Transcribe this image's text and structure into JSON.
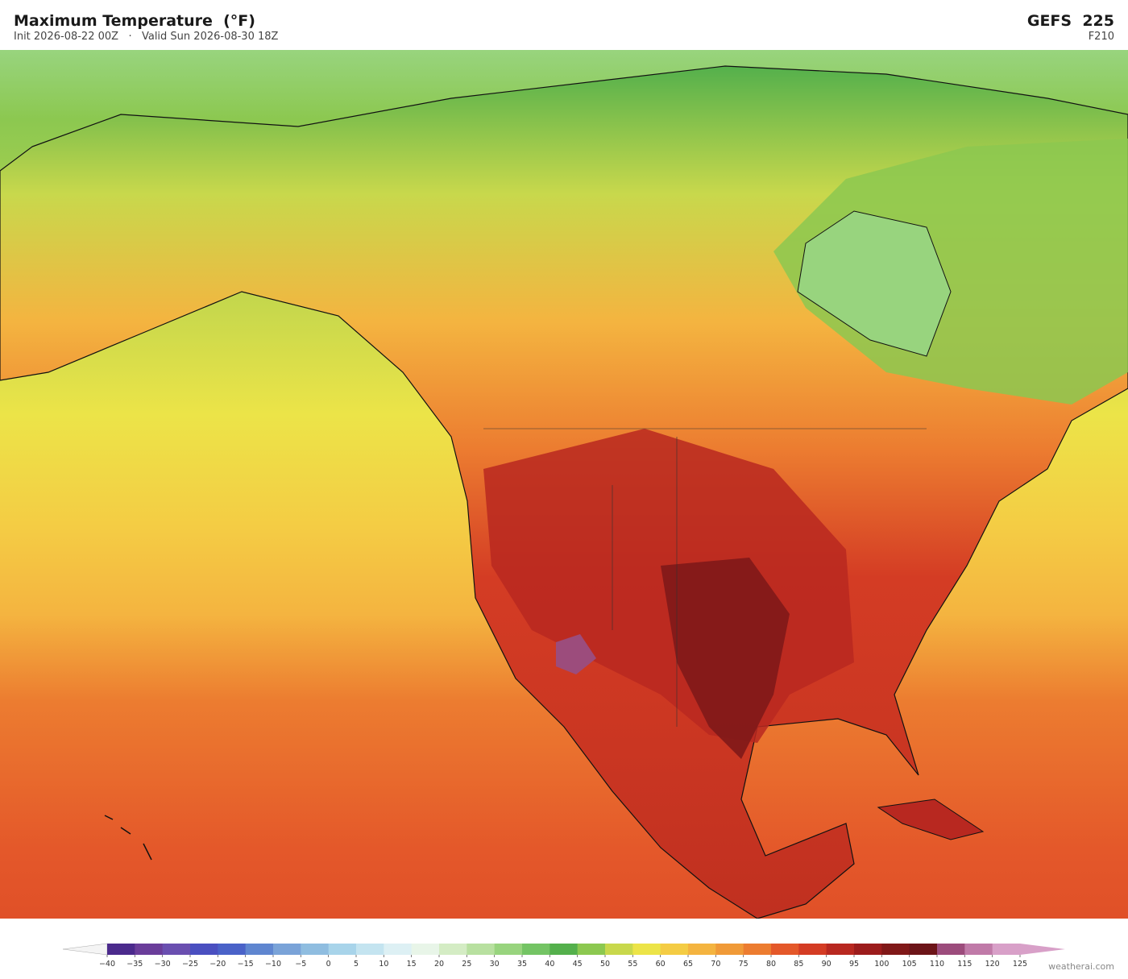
{
  "header": {
    "title": "Maximum Temperature  (°F)",
    "subtitle": "Init 2026-08-22 00Z   ·   Valid Sun 2026-08-30 18Z",
    "model": "GEFS  225",
    "forecast_hour": "F210"
  },
  "colorbar": {
    "ticks": [
      {
        "value": -40,
        "label": "−40"
      },
      {
        "value": -35,
        "label": "−35"
      },
      {
        "value": -30,
        "label": "−30"
      },
      {
        "value": -25,
        "label": "−25"
      },
      {
        "value": -20,
        "label": "−20"
      },
      {
        "value": -15,
        "label": "−15"
      },
      {
        "value": -10,
        "label": "−10"
      },
      {
        "value": -5,
        "label": "−5"
      },
      0,
      5,
      10,
      15,
      20,
      25,
      30,
      35,
      40,
      45,
      50,
      55,
      60,
      65,
      70,
      75,
      80,
      85,
      90,
      95,
      100,
      105,
      110,
      115,
      120,
      125
    ],
    "colors": [
      "#4b2a8c",
      "#6a3d9a",
      "#6a4fb0",
      "#4a4fc0",
      "#4a62c8",
      "#5f86d0",
      "#7aa3d8",
      "#8fbde0",
      "#a8d4ea",
      "#c4e4f0",
      "#ddf0f4",
      "#e8f5e8",
      "#d4ecc4",
      "#b8e0a0",
      "#98d47e",
      "#74c464",
      "#54b04c",
      "#8cc850",
      "#c8d84c",
      "#ece448",
      "#f4cc44",
      "#f4b440",
      "#f09a38",
      "#ec7c30",
      "#e4582a",
      "#d43c24",
      "#b82820",
      "#9c1c1c",
      "#801818",
      "#6c1418",
      "#9c4c7c",
      "#c07aa8",
      "#d8a0c8"
    ],
    "under_color": "#f4f4f4",
    "over_color": "#d8a0c8"
  },
  "watermark": "weatherai.com"
}
